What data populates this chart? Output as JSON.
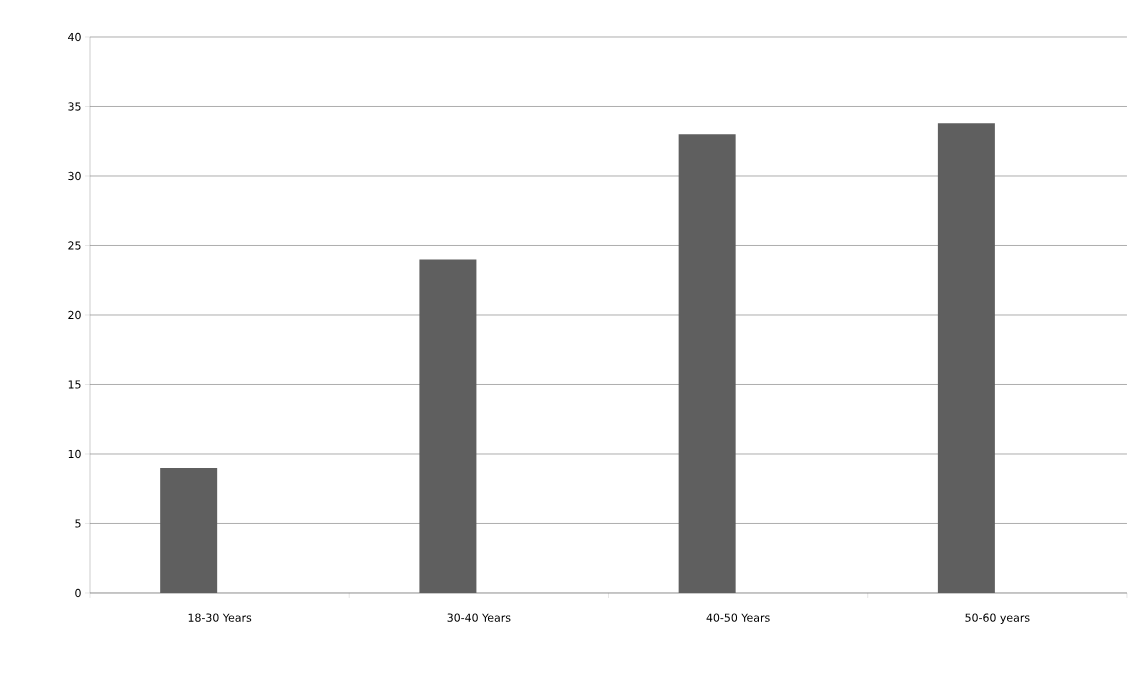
{
  "chart_data": {
    "type": "bar",
    "categories": [
      "18-30 Years",
      "30-40 Years",
      "40-50 Years",
      "50-60 years"
    ],
    "values": [
      9,
      24,
      33,
      33.8
    ],
    "color": "#5f5f5f",
    "ylim": [
      0,
      40
    ],
    "yticks": [
      0,
      5,
      10,
      15,
      20,
      25,
      30,
      35,
      40
    ],
    "grid": "y"
  }
}
